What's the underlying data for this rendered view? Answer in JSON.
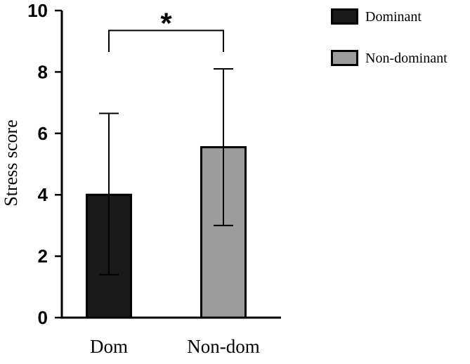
{
  "figure": {
    "background": "#ffffff"
  },
  "chart_data": {
    "type": "bar",
    "title": "",
    "ylabel": "Stress score",
    "xlabel": "",
    "ylim": [
      0,
      10
    ],
    "yticks": [
      0,
      2,
      4,
      6,
      8,
      10
    ],
    "categories": [
      "Dom",
      "Non-dom"
    ],
    "values": [
      4.0,
      5.55
    ],
    "error_low": [
      1.4,
      3.0
    ],
    "error_high": [
      6.65,
      8.1
    ],
    "bar_colors": [
      "#1a1a1a",
      "#9c9c9c"
    ],
    "bar_edge_color": "#000000",
    "grid": false,
    "legend": {
      "position": "top-right",
      "entries": [
        {
          "label": "Dominant",
          "color": "#1a1a1a"
        },
        {
          "label": "Non-dominant",
          "color": "#9c9c9c"
        }
      ]
    },
    "significance": {
      "label": "*",
      "pair": [
        "Dom",
        "Non-dom"
      ],
      "bracket_y": 9.35,
      "bracket_drop_to": 8.65
    }
  }
}
